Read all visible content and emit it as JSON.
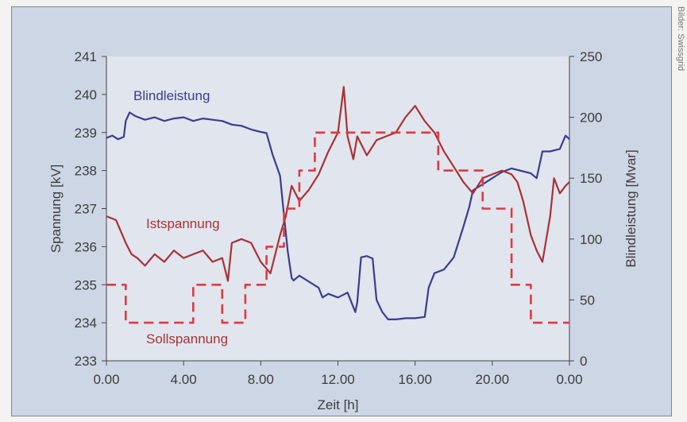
{
  "credit": "Bilder: Swissgrid",
  "chart_data": {
    "type": "line",
    "title": "",
    "xlabel": "Zeit [h]",
    "ylabel_left": "Spannung [kV]",
    "ylabel_right": "Blindleistung [Mvar]",
    "x_ticks": [
      "0.00",
      "4.00",
      "8.00",
      "12.00",
      "16.00",
      "20.00",
      "0.00"
    ],
    "y_left_ticks": [
      "233",
      "234",
      "235",
      "236",
      "237",
      "238",
      "239",
      "240",
      "241"
    ],
    "y_right_ticks": [
      "0",
      "50",
      "100",
      "150",
      "200",
      "250"
    ],
    "xlim": [
      0,
      24
    ],
    "ylim_left": [
      233,
      241
    ],
    "ylim_right": [
      0,
      250
    ],
    "grid": false,
    "colors": {
      "blindleistung": "#3a3d8f",
      "istspannung": "#a83236",
      "sollspannung": "#e0393f"
    },
    "series": [
      {
        "name": "Blindleistung",
        "axis": "right",
        "x": [
          0,
          0.3,
          0.6,
          0.9,
          1.0,
          1.2,
          1.5,
          2.0,
          2.5,
          3.0,
          3.5,
          4.0,
          4.5,
          5.0,
          5.5,
          6.0,
          6.5,
          7.0,
          7.5,
          8.0,
          8.3,
          8.6,
          9.0,
          9.2,
          9.4,
          9.6,
          9.7,
          10.0,
          10.3,
          10.6,
          11.0,
          11.2,
          11.5,
          12.0,
          12.5,
          12.9,
          13.0,
          13.2,
          13.5,
          13.8,
          14.0,
          14.3,
          14.6,
          15.0,
          15.5,
          16.0,
          16.5,
          16.7,
          17.0,
          17.5,
          18.0,
          18.5,
          18.8,
          19.0,
          19.5,
          20.0,
          20.5,
          21.0,
          21.5,
          22.0,
          22.3,
          22.6,
          23.0,
          23.5,
          23.8,
          24.0
        ],
        "values": [
          183,
          185,
          182,
          184,
          197,
          204,
          201,
          198,
          200,
          197,
          199,
          200,
          197,
          199,
          198,
          197,
          194,
          193,
          190,
          188,
          187,
          170,
          152,
          120,
          90,
          68,
          66,
          70,
          67,
          64,
          60,
          52,
          55,
          52,
          56,
          40,
          48,
          85,
          86,
          84,
          50,
          40,
          34,
          34,
          35,
          35,
          36,
          60,
          72,
          75,
          85,
          110,
          126,
          140,
          145,
          150,
          155,
          158,
          156,
          154,
          150,
          172,
          172,
          174,
          185,
          182
        ]
      },
      {
        "name": "Istspannung",
        "axis": "left",
        "x": [
          0,
          0.5,
          1.0,
          1.3,
          1.6,
          2.0,
          2.5,
          3.0,
          3.5,
          4.0,
          4.5,
          5.0,
          5.5,
          6.0,
          6.3,
          6.5,
          7.0,
          7.5,
          8.0,
          8.5,
          9.0,
          9.3,
          9.6,
          10.0,
          10.5,
          11.0,
          11.5,
          12.0,
          12.3,
          12.5,
          12.8,
          13.0,
          13.5,
          14.0,
          14.5,
          15.0,
          15.5,
          16.0,
          16.5,
          17.0,
          17.5,
          18.0,
          18.5,
          19.0,
          19.5,
          20.0,
          20.5,
          21.0,
          21.3,
          21.6,
          22.0,
          22.3,
          22.6,
          23.0,
          23.2,
          23.5,
          23.8,
          24.0
        ],
        "values": [
          236.8,
          236.7,
          236.1,
          235.8,
          235.7,
          235.5,
          235.8,
          235.6,
          235.9,
          235.7,
          235.8,
          235.9,
          235.6,
          235.7,
          235.1,
          236.1,
          236.2,
          236.1,
          235.6,
          235.3,
          236.3,
          236.8,
          237.6,
          237.2,
          237.5,
          237.9,
          238.5,
          239.0,
          240.2,
          238.9,
          238.3,
          238.9,
          238.4,
          238.8,
          238.9,
          239.0,
          239.4,
          239.7,
          239.3,
          239.0,
          238.5,
          238.1,
          237.7,
          237.4,
          237.8,
          237.9,
          238.0,
          237.9,
          237.7,
          237.2,
          236.3,
          235.9,
          235.6,
          236.8,
          237.8,
          237.4,
          237.6,
          237.7
        ]
      },
      {
        "name": "Sollspannung",
        "axis": "left",
        "x": [
          0,
          1.0,
          1.0,
          4.5,
          4.5,
          6.0,
          6.0,
          7.2,
          7.2,
          8.3,
          8.3,
          9.2,
          9.2,
          10.0,
          10.0,
          10.8,
          10.8,
          17.2,
          17.2,
          19.5,
          19.5,
          21.0,
          21.0,
          22.0,
          22.0,
          24.0
        ],
        "values": [
          235.0,
          235.0,
          234.0,
          234.0,
          235.0,
          235.0,
          234.0,
          234.0,
          235.0,
          235.0,
          236.0,
          236.0,
          237.0,
          237.0,
          238.0,
          238.0,
          239.0,
          239.0,
          238.0,
          238.0,
          237.0,
          237.0,
          235.0,
          235.0,
          234.0,
          234.0
        ]
      }
    ],
    "annotations": [
      {
        "text": "Blindleistung",
        "series": "Blindleistung"
      },
      {
        "text": "Istspannung",
        "series": "Istspannung"
      },
      {
        "text": "Sollspannung",
        "series": "Sollspannung"
      }
    ]
  }
}
